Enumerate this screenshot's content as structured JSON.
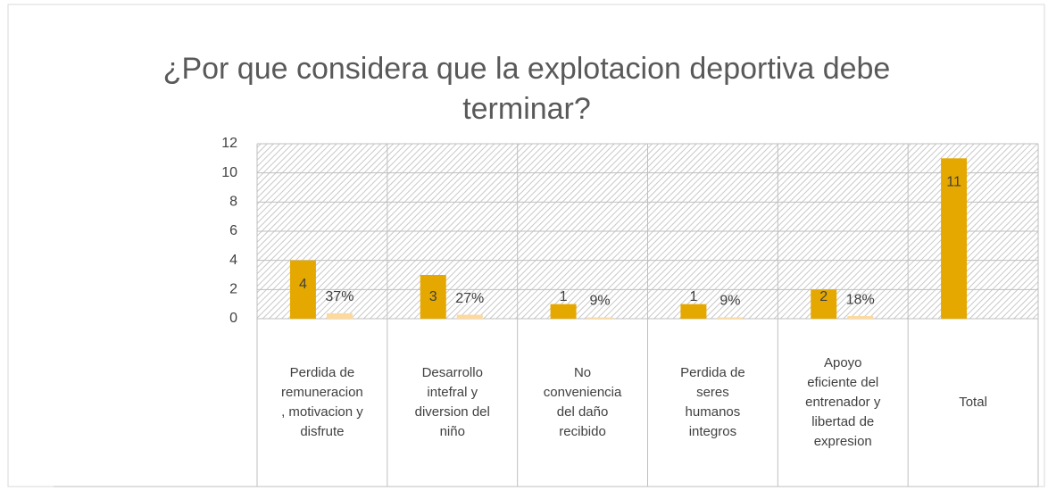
{
  "chart_data": {
    "type": "bar",
    "title": "¿Por que considera que la explotacion deportiva debe terminar?",
    "categories": [
      "Perdida de remuneracion, motivacion y disfrute",
      "Desarrollo intefral y diversion del niño",
      "No conveniencia del daño recibido",
      "Perdida de seres humanos integros",
      "Apoyo eficiente del entrenador y libertad de expresion",
      "Total"
    ],
    "series": [
      {
        "color": "#e5a800",
        "values": [
          4,
          3,
          1,
          1,
          2,
          11
        ]
      },
      {
        "color": "#fdd99b",
        "values": [
          0.37,
          0.27,
          0.09,
          0.09,
          0.18,
          null
        ],
        "value_labels": [
          "37%",
          "27%",
          "9%",
          "9%",
          "18%",
          null
        ]
      }
    ],
    "ylim": [
      0,
      12
    ],
    "yticks": [
      0,
      2,
      4,
      6,
      8,
      10,
      12
    ],
    "grid": true
  }
}
